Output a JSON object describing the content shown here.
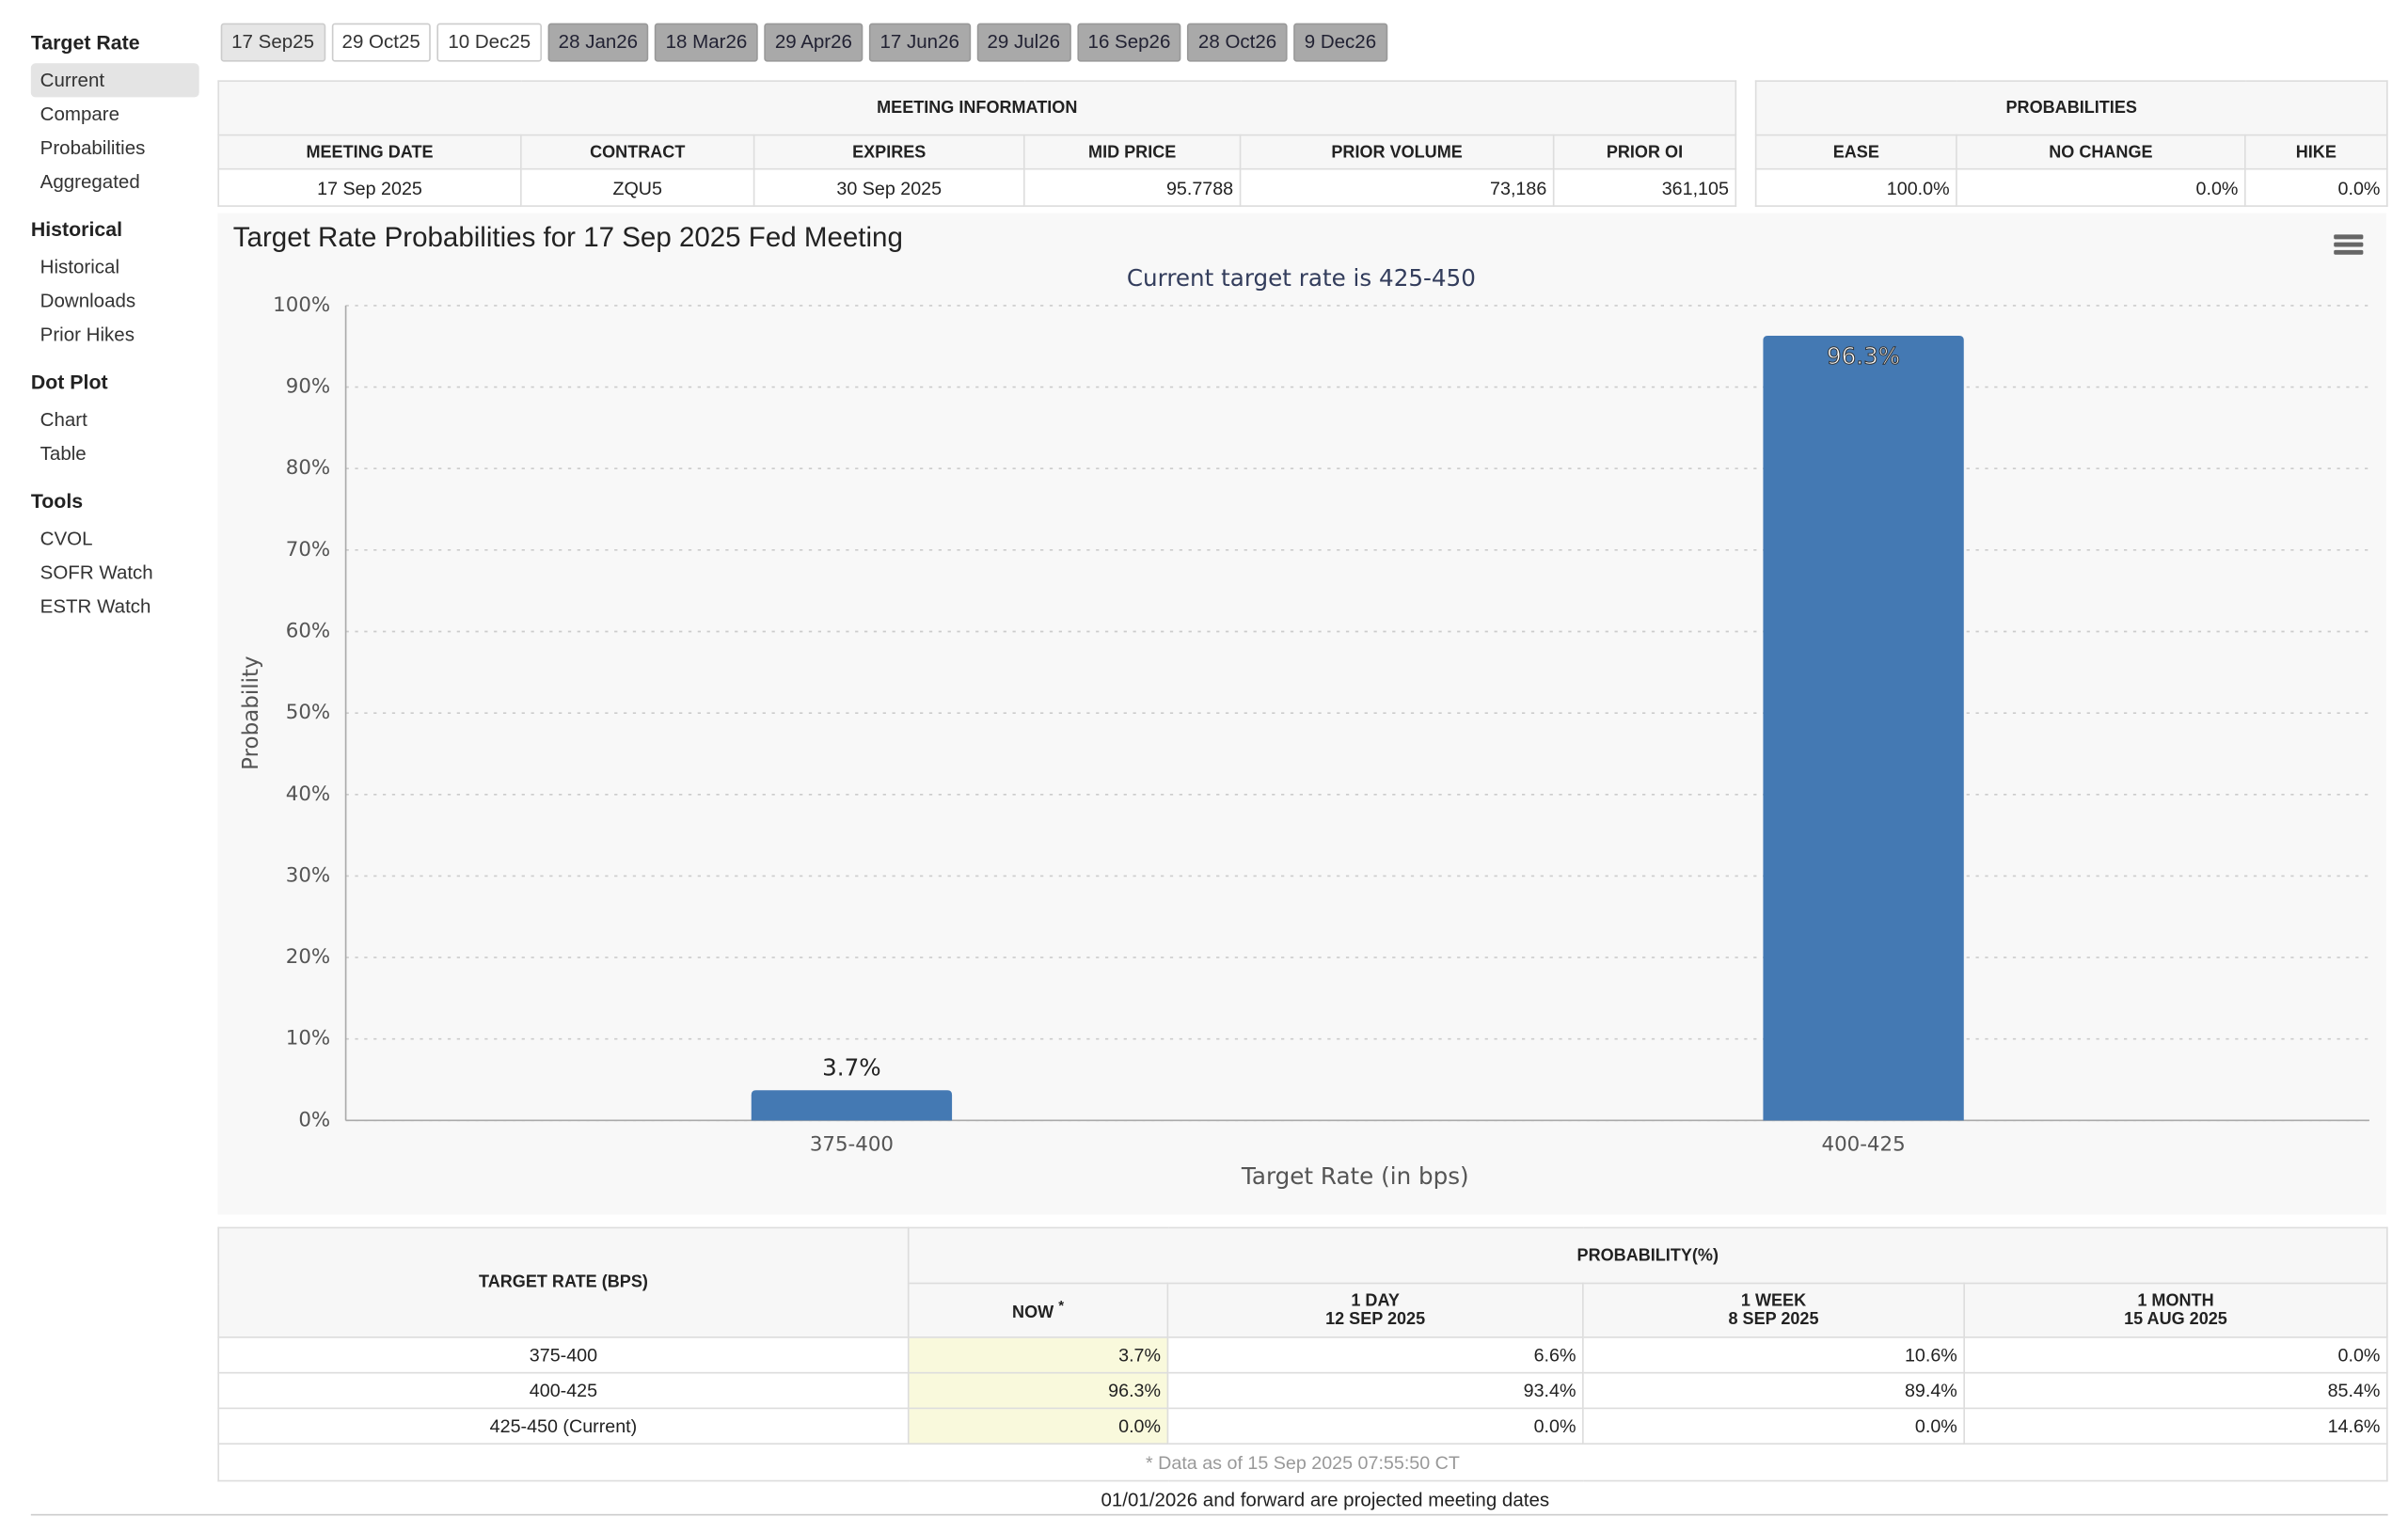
{
  "sidebar": [
    {
      "title": "Target Rate",
      "items": [
        "Current",
        "Compare",
        "Probabilities",
        "Aggregated"
      ]
    },
    {
      "title": "Historical",
      "items": [
        "Historical",
        "Downloads",
        "Prior Hikes"
      ]
    },
    {
      "title": "Dot Plot",
      "items": [
        "Chart",
        "Table"
      ]
    },
    {
      "title": "Tools",
      "items": [
        "CVOL",
        "SOFR Watch",
        "ESTR Watch"
      ]
    }
  ],
  "tabs": [
    "17 Sep25",
    "29 Oct25",
    "10 Dec25",
    "28 Jan26",
    "18 Mar26",
    "29 Apr26",
    "17 Jun26",
    "29 Jul26",
    "16 Sep26",
    "28 Oct26",
    "9 Dec26"
  ],
  "meeting_info": {
    "title": "MEETING INFORMATION",
    "headers": [
      "MEETING DATE",
      "CONTRACT",
      "EXPIRES",
      "MID PRICE",
      "PRIOR VOLUME",
      "PRIOR OI"
    ],
    "row": [
      "17 Sep 2025",
      "ZQU5",
      "30 Sep 2025",
      "95.7788",
      "73,186",
      "361,105"
    ]
  },
  "probabilities": {
    "title": "PROBABILITIES",
    "headers": [
      "EASE",
      "NO CHANGE",
      "HIKE"
    ],
    "row": [
      "100.0%",
      "0.0%",
      "0.0%"
    ]
  },
  "chart_data": {
    "type": "bar",
    "title": "Target Rate Probabilities for 17 Sep 2025 Fed Meeting",
    "subtitle": "Current target rate is 425-450",
    "x_label": "Target Rate (in bps)",
    "y_label": "Probability",
    "categories": [
      "375-400",
      "400-425"
    ],
    "values": [
      3.7,
      96.3
    ],
    "value_labels": [
      "3.7%",
      "96.3%"
    ],
    "color": "#4479b3",
    "ylim": [
      0,
      100
    ],
    "yticks": [
      {
        "value": 0,
        "label": "0%"
      },
      {
        "value": 10,
        "label": "10%"
      },
      {
        "value": 20,
        "label": "20%"
      },
      {
        "value": 30,
        "label": "30%"
      },
      {
        "value": 40,
        "label": "40%"
      },
      {
        "value": 50,
        "label": "50%"
      },
      {
        "value": 60,
        "label": "60%"
      },
      {
        "value": 70,
        "label": "70%"
      },
      {
        "value": 80,
        "label": "80%"
      },
      {
        "value": 90,
        "label": "90%"
      },
      {
        "value": 100,
        "label": "100%"
      }
    ],
    "grid": true
  },
  "prob_table": {
    "rate_header": "TARGET RATE (BPS)",
    "prob_header": "PROBABILITY(%)",
    "now": "NOW",
    "now_mark": "*",
    "columns": [
      {
        "label": "1 DAY",
        "date": "12 SEP 2025"
      },
      {
        "label": "1 WEEK",
        "date": "8 SEP 2025"
      },
      {
        "label": "1 MONTH",
        "date": "15 AUG 2025"
      }
    ],
    "rows": [
      [
        "375-400",
        "3.7%",
        "6.6%",
        "10.6%",
        "0.0%"
      ],
      [
        "400-425",
        "96.3%",
        "93.4%",
        "89.4%",
        "85.4%"
      ],
      [
        "425-450 (Current)",
        "0.0%",
        "0.0%",
        "0.0%",
        "14.6%"
      ]
    ],
    "note": "* Data as of 15 Sep 2025 07:55:50 CT"
  },
  "footer": "01/01/2026 and forward are projected meeting dates"
}
